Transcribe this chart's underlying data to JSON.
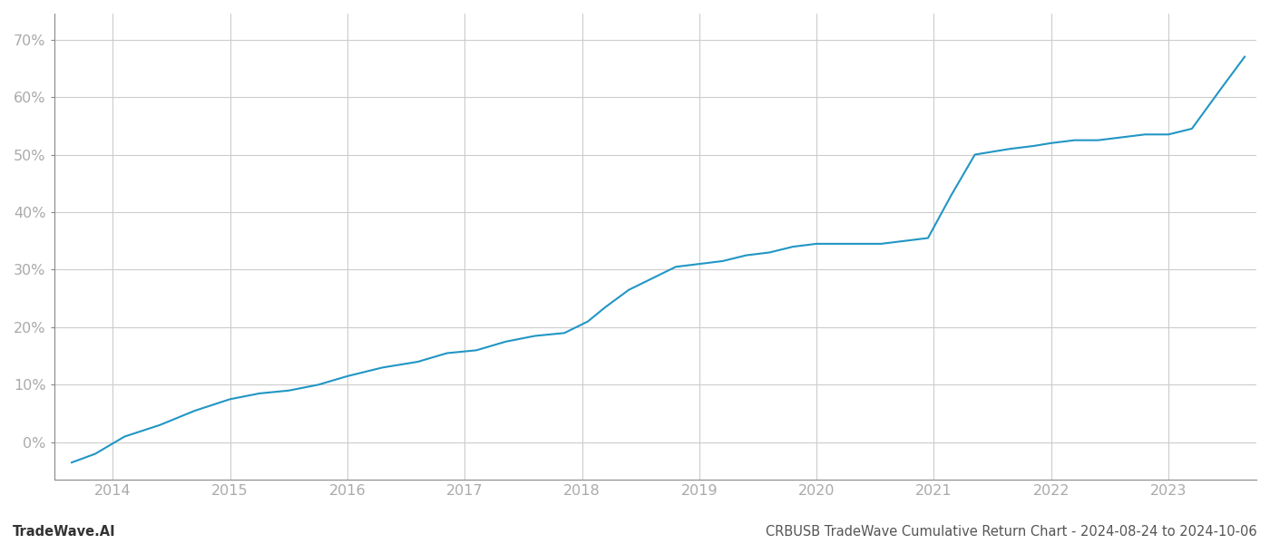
{
  "x_values": [
    2013.65,
    2013.85,
    2014.1,
    2014.4,
    2014.7,
    2015.0,
    2015.25,
    2015.5,
    2015.75,
    2016.0,
    2016.3,
    2016.6,
    2016.85,
    2017.1,
    2017.35,
    2017.6,
    2017.85,
    2018.05,
    2018.2,
    2018.4,
    2018.6,
    2018.8,
    2019.0,
    2019.2,
    2019.4,
    2019.6,
    2019.8,
    2020.0,
    2020.2,
    2020.4,
    2020.55,
    2020.75,
    2020.95,
    2021.15,
    2021.35,
    2021.5,
    2021.65,
    2021.85,
    2022.0,
    2022.2,
    2022.4,
    2022.6,
    2022.8,
    2023.0,
    2023.2,
    2023.45,
    2023.65
  ],
  "y_values": [
    -0.035,
    -0.02,
    0.01,
    0.03,
    0.055,
    0.075,
    0.085,
    0.09,
    0.1,
    0.115,
    0.13,
    0.14,
    0.155,
    0.16,
    0.175,
    0.185,
    0.19,
    0.21,
    0.235,
    0.265,
    0.285,
    0.305,
    0.31,
    0.315,
    0.325,
    0.33,
    0.34,
    0.345,
    0.345,
    0.345,
    0.345,
    0.35,
    0.355,
    0.43,
    0.5,
    0.505,
    0.51,
    0.515,
    0.52,
    0.525,
    0.525,
    0.53,
    0.535,
    0.535,
    0.545,
    0.615,
    0.67
  ],
  "line_color": "#2196c4",
  "line_width": 1.5,
  "background_color": "#ffffff",
  "grid_color": "#cccccc",
  "footer_left": "TradeWave.AI",
  "footer_right": "CRBUSB TradeWave Cumulative Return Chart - 2024-08-24 to 2024-10-06",
  "xlim": [
    2013.5,
    2023.75
  ],
  "ylim": [
    -0.065,
    0.745
  ],
  "yticks": [
    0.0,
    0.1,
    0.2,
    0.3,
    0.4,
    0.5,
    0.6,
    0.7
  ],
  "xticks": [
    2014,
    2015,
    2016,
    2017,
    2018,
    2019,
    2020,
    2021,
    2022,
    2023
  ],
  "footer_fontsize": 10.5,
  "tick_fontsize": 11.5,
  "tick_color": "#aaaaaa"
}
